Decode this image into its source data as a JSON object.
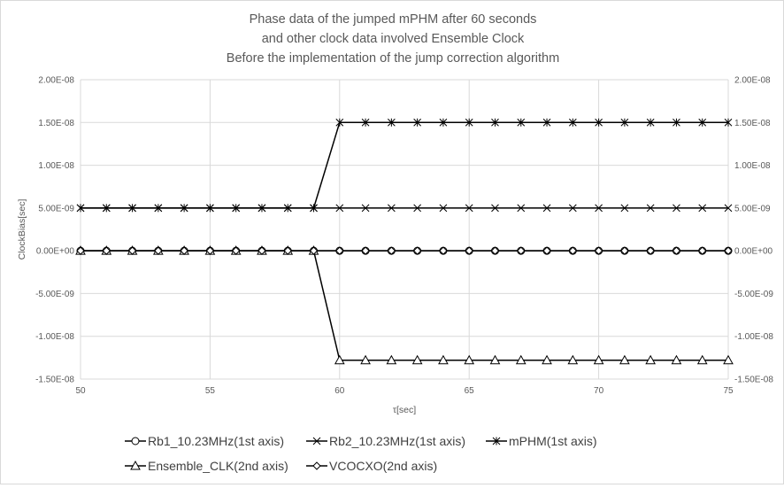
{
  "chart_data": {
    "type": "line",
    "title": [
      "Phase data of the jumped mPHM after 60 seconds",
      "and other clock data involved Ensemble Clock",
      "Before the implementation of the jump correction algorithm"
    ],
    "xlabel": "τ[sec]",
    "ylabel": "ClockBias[sec]",
    "xlim": [
      50,
      75
    ],
    "x_ticks": [
      "50",
      "55",
      "60",
      "65",
      "70",
      "75"
    ],
    "ylim": [
      -1.5e-08,
      2e-08
    ],
    "y_ticks": [
      "2.00E-08",
      "1.50E-08",
      "1.00E-08",
      "5.00E-09",
      "0.00E+00",
      "-5.00E-09",
      "-1.00E-08",
      "-1.50E-08"
    ],
    "y2lim": [
      -1.5e-08,
      2e-08
    ],
    "y2_ticks": [
      "2.00E-08",
      "1.50E-08",
      "1.00E-08",
      "5.00E-09",
      "0.00E+00",
      "-5.00E-09",
      "-1.00E-08",
      "-1.50E-08"
    ],
    "grid": true,
    "legend_position": "bottom",
    "x": [
      50,
      51,
      52,
      53,
      54,
      55,
      56,
      57,
      58,
      59,
      60,
      61,
      62,
      63,
      64,
      65,
      66,
      67,
      68,
      69,
      70,
      71,
      72,
      73,
      74,
      75
    ],
    "series": [
      {
        "name": "Rb1_10.23MHz(1st axis)",
        "marker": "circle",
        "axis": "1st",
        "values": [
          0,
          0,
          0,
          0,
          0,
          0,
          0,
          0,
          0,
          0,
          0,
          0,
          0,
          0,
          0,
          0,
          0,
          0,
          0,
          0,
          0,
          0,
          0,
          0,
          0,
          0
        ]
      },
      {
        "name": "Rb2_10.23MHz(1st axis)",
        "marker": "x",
        "axis": "1st",
        "values": [
          5e-09,
          5e-09,
          5e-09,
          5e-09,
          5e-09,
          5e-09,
          5e-09,
          5e-09,
          5e-09,
          5e-09,
          5e-09,
          5e-09,
          5e-09,
          5e-09,
          5e-09,
          5e-09,
          5e-09,
          5e-09,
          5e-09,
          5e-09,
          5e-09,
          5e-09,
          5e-09,
          5e-09,
          5e-09,
          5e-09
        ]
      },
      {
        "name": "mPHM(1st axis)",
        "marker": "star",
        "axis": "1st",
        "values": [
          5e-09,
          5e-09,
          5e-09,
          5e-09,
          5e-09,
          5e-09,
          5e-09,
          5e-09,
          5e-09,
          5e-09,
          1.5e-08,
          1.5e-08,
          1.5e-08,
          1.5e-08,
          1.5e-08,
          1.5e-08,
          1.5e-08,
          1.5e-08,
          1.5e-08,
          1.5e-08,
          1.5e-08,
          1.5e-08,
          1.5e-08,
          1.5e-08,
          1.5e-08,
          1.5e-08
        ]
      },
      {
        "name": "Ensemble_CLK(2nd axis)",
        "marker": "triangle",
        "axis": "2nd",
        "values": [
          0,
          0,
          0,
          0,
          0,
          0,
          0,
          0,
          0,
          0,
          -1.28e-08,
          -1.28e-08,
          -1.28e-08,
          -1.28e-08,
          -1.28e-08,
          -1.28e-08,
          -1.28e-08,
          -1.28e-08,
          -1.28e-08,
          -1.28e-08,
          -1.28e-08,
          -1.28e-08,
          -1.28e-08,
          -1.28e-08,
          -1.28e-08,
          -1.28e-08
        ]
      },
      {
        "name": "VCOCXO(2nd axis)",
        "marker": "diamond",
        "axis": "2nd",
        "values": [
          0,
          0,
          0,
          0,
          0,
          0,
          0,
          0,
          0,
          0,
          0,
          0,
          0,
          0,
          0,
          0,
          0,
          0,
          0,
          0,
          0,
          0,
          0,
          0,
          0,
          0
        ]
      }
    ]
  }
}
